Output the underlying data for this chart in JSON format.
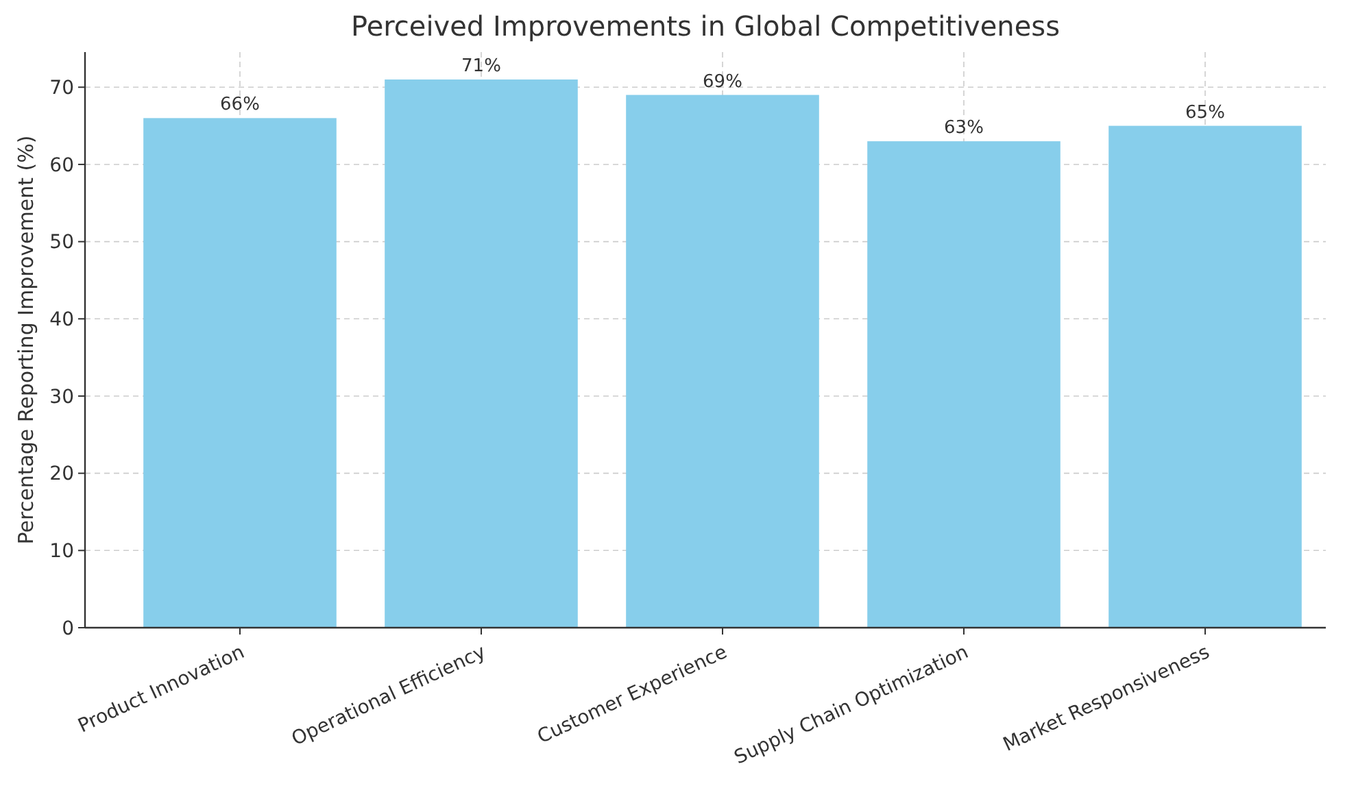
{
  "chart_data": {
    "type": "bar",
    "title": "Perceived Improvements in Global Competitiveness",
    "ylabel": "Percentage Reporting Improvement (%)",
    "categories": [
      "Product Innovation",
      "Operational Efficiency",
      "Customer Experience",
      "Supply Chain Optimization",
      "Market Responsiveness"
    ],
    "values": [
      66,
      71,
      69,
      63,
      65
    ],
    "value_labels": [
      "66%",
      "71%",
      "69%",
      "63%",
      "65%"
    ],
    "color": "#87ceeb",
    "ylim": [
      0,
      74.55
    ],
    "yticks": [
      0,
      10,
      20,
      30,
      40,
      50,
      60,
      70
    ],
    "grid": true
  }
}
